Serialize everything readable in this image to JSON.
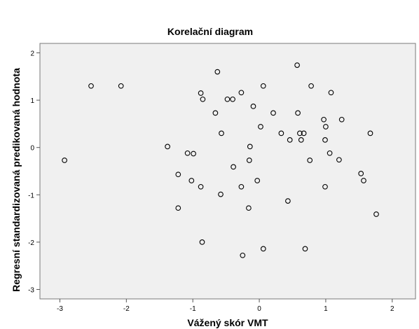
{
  "chart_data": {
    "type": "scatter",
    "title": "Korelační diagram",
    "xlabel": "Vážený skór VMT",
    "ylabel": "Regresní standardizovaná predikovaná hodnota",
    "xlim": [
      -3.3,
      2.35
    ],
    "ylim": [
      -3.2,
      2.2
    ],
    "xticks": [
      -3,
      -2,
      -1,
      0,
      1,
      2
    ],
    "yticks": [
      -3,
      -2,
      -1,
      0,
      1,
      2
    ],
    "xtick_labels": [
      "-3",
      "-2",
      "-1",
      "0",
      "1",
      "2"
    ],
    "ytick_labels": [
      "-3",
      "-2",
      "-1",
      "0",
      "1",
      "2"
    ],
    "grid": false,
    "background": "#f0f0f0",
    "marker_color": "#000000",
    "points": [
      [
        -2.93,
        -0.27
      ],
      [
        -2.53,
        1.3
      ],
      [
        -2.08,
        1.3
      ],
      [
        -1.38,
        0.02
      ],
      [
        -1.22,
        -0.57
      ],
      [
        -1.22,
        -1.28
      ],
      [
        -1.08,
        -0.12
      ],
      [
        -1.02,
        -0.7
      ],
      [
        -0.99,
        -0.13
      ],
      [
        -0.88,
        -0.83
      ],
      [
        -0.88,
        1.15
      ],
      [
        -0.85,
        1.02
      ],
      [
        -0.86,
        -2.0
      ],
      [
        -0.66,
        0.73
      ],
      [
        -0.63,
        1.6
      ],
      [
        -0.58,
        -0.99
      ],
      [
        -0.57,
        0.3
      ],
      [
        -0.48,
        1.02
      ],
      [
        -0.39,
        -0.41
      ],
      [
        -0.4,
        1.02
      ],
      [
        -0.27,
        1.16
      ],
      [
        -0.27,
        -0.83
      ],
      [
        -0.25,
        -2.28
      ],
      [
        -0.16,
        -1.28
      ],
      [
        -0.15,
        -0.27
      ],
      [
        -0.14,
        0.02
      ],
      [
        -0.09,
        0.87
      ],
      [
        -0.03,
        -0.7
      ],
      [
        0.02,
        0.44
      ],
      [
        0.06,
        1.3
      ],
      [
        0.06,
        -2.14
      ],
      [
        0.21,
        0.73
      ],
      [
        0.33,
        0.3
      ],
      [
        0.43,
        -1.13
      ],
      [
        0.46,
        0.16
      ],
      [
        0.58,
        0.73
      ],
      [
        0.57,
        1.74
      ],
      [
        0.61,
        0.3
      ],
      [
        0.63,
        0.16
      ],
      [
        0.67,
        0.3
      ],
      [
        0.69,
        -2.14
      ],
      [
        0.76,
        -0.27
      ],
      [
        0.78,
        1.3
      ],
      [
        0.97,
        0.59
      ],
      [
        0.99,
        0.16
      ],
      [
        0.99,
        -0.83
      ],
      [
        1.0,
        0.44
      ],
      [
        1.06,
        -0.12
      ],
      [
        1.08,
        1.16
      ],
      [
        1.2,
        -0.26
      ],
      [
        1.24,
        0.59
      ],
      [
        1.53,
        -0.55
      ],
      [
        1.57,
        -0.7
      ],
      [
        1.67,
        0.3
      ],
      [
        1.76,
        -1.41
      ]
    ]
  }
}
